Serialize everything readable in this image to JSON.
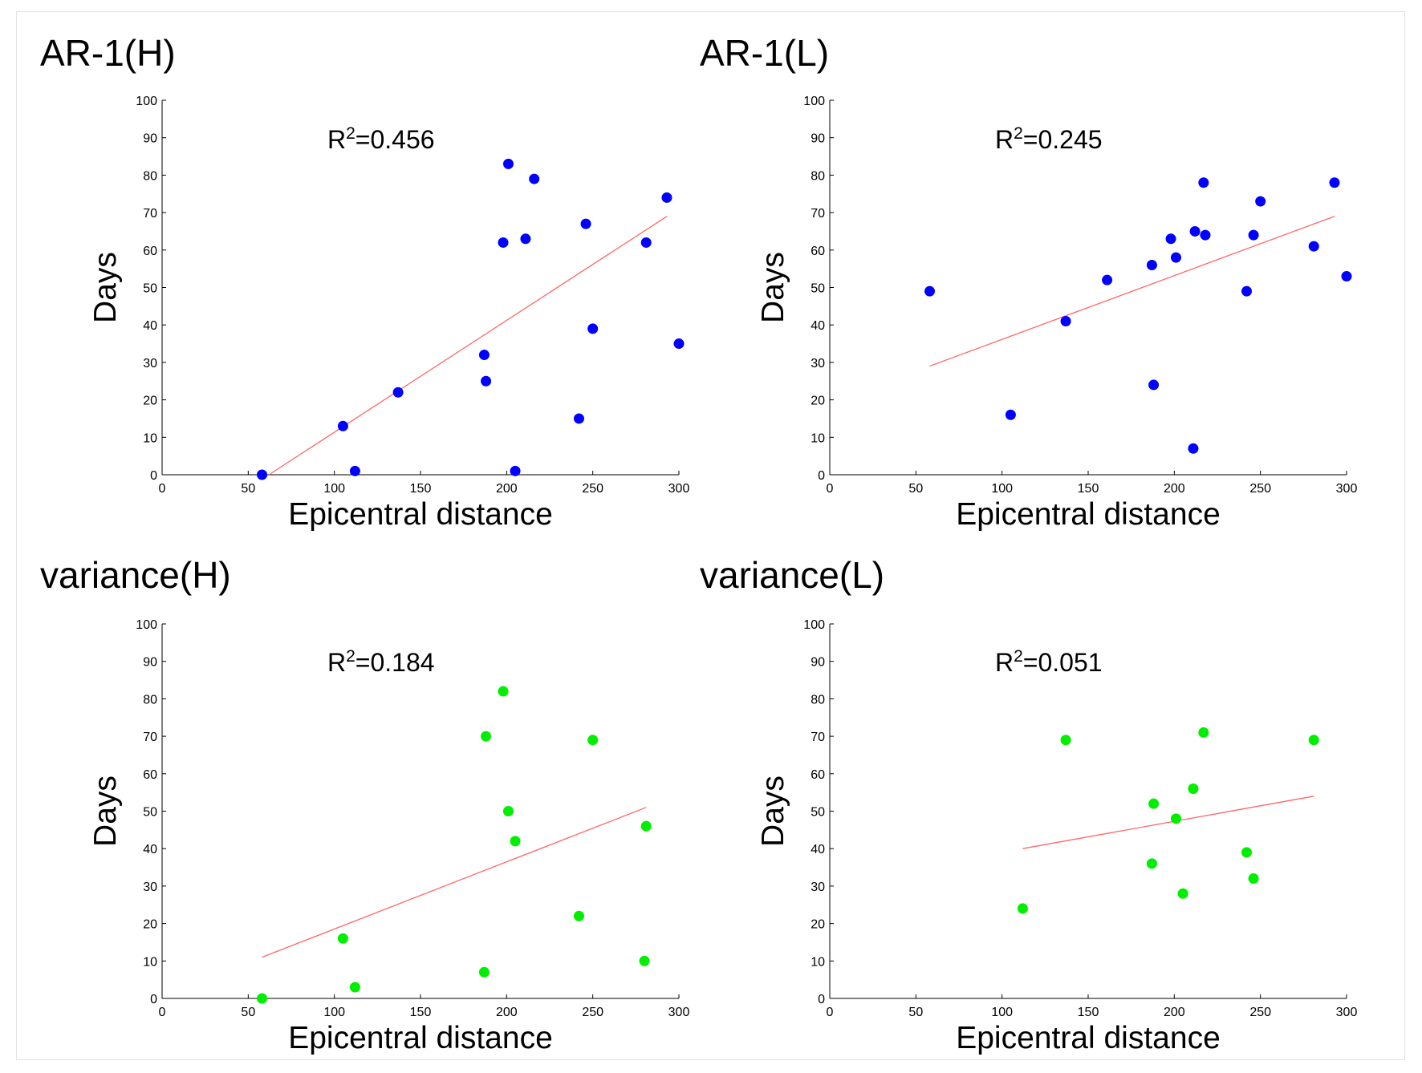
{
  "chart_data": [
    {
      "type": "scatter",
      "title": "AR-1(H)",
      "xlabel": "Epicentral distance",
      "ylabel": "Days",
      "xlim": [
        0,
        300
      ],
      "ylim": [
        0,
        100
      ],
      "xticks": [
        0,
        50,
        100,
        150,
        200,
        250,
        300
      ],
      "yticks": [
        0,
        10,
        20,
        30,
        40,
        50,
        60,
        70,
        80,
        90,
        100
      ],
      "annotation": {
        "base": "R",
        "sup": "2",
        "value": "=0.456"
      },
      "marker_color": "#0000ff",
      "fit_color": "#ff6666",
      "points": [
        [
          58,
          0
        ],
        [
          105,
          13
        ],
        [
          112,
          1
        ],
        [
          137,
          22
        ],
        [
          187,
          32
        ],
        [
          188,
          25
        ],
        [
          198,
          62
        ],
        [
          201,
          83
        ],
        [
          205,
          1
        ],
        [
          211,
          63
        ],
        [
          216,
          79
        ],
        [
          242,
          15
        ],
        [
          246,
          67
        ],
        [
          250,
          39
        ],
        [
          281,
          62
        ],
        [
          293,
          74
        ],
        [
          300,
          35
        ]
      ],
      "fit_line": [
        [
          62,
          0
        ],
        [
          293,
          69
        ]
      ]
    },
    {
      "type": "scatter",
      "title": "AR-1(L)",
      "xlabel": "Epicentral distance",
      "ylabel": "Days",
      "xlim": [
        0,
        300
      ],
      "ylim": [
        0,
        100
      ],
      "xticks": [
        0,
        50,
        100,
        150,
        200,
        250,
        300
      ],
      "yticks": [
        0,
        10,
        20,
        30,
        40,
        50,
        60,
        70,
        80,
        90,
        100
      ],
      "annotation": {
        "base": "R",
        "sup": "2",
        "value": "=0.245"
      },
      "marker_color": "#0000ff",
      "fit_color": "#ff6666",
      "points": [
        [
          58,
          49
        ],
        [
          105,
          16
        ],
        [
          137,
          41
        ],
        [
          161,
          52
        ],
        [
          187,
          56
        ],
        [
          188,
          24
        ],
        [
          198,
          63
        ],
        [
          201,
          58
        ],
        [
          211,
          7
        ],
        [
          212,
          65
        ],
        [
          217,
          78
        ],
        [
          218,
          64
        ],
        [
          242,
          49
        ],
        [
          246,
          64
        ],
        [
          250,
          73
        ],
        [
          281,
          61
        ],
        [
          293,
          78
        ],
        [
          300,
          53
        ]
      ],
      "fit_line": [
        [
          58,
          29
        ],
        [
          293,
          69
        ]
      ]
    },
    {
      "type": "scatter",
      "title": "variance(H)",
      "xlabel": "Epicentral distance",
      "ylabel": "Days",
      "xlim": [
        0,
        300
      ],
      "ylim": [
        0,
        100
      ],
      "xticks": [
        0,
        50,
        100,
        150,
        200,
        250,
        300
      ],
      "yticks": [
        0,
        10,
        20,
        30,
        40,
        50,
        60,
        70,
        80,
        90,
        100
      ],
      "annotation": {
        "base": "R",
        "sup": "2",
        "value": "=0.184"
      },
      "marker_color": "#00ee00",
      "fit_color": "#ff6666",
      "points": [
        [
          58,
          0
        ],
        [
          105,
          16
        ],
        [
          112,
          3
        ],
        [
          187,
          7
        ],
        [
          188,
          70
        ],
        [
          198,
          82
        ],
        [
          201,
          50
        ],
        [
          205,
          42
        ],
        [
          242,
          22
        ],
        [
          250,
          69
        ],
        [
          280,
          10
        ],
        [
          281,
          46
        ]
      ],
      "fit_line": [
        [
          58,
          11
        ],
        [
          281,
          51
        ]
      ]
    },
    {
      "type": "scatter",
      "title": "variance(L)",
      "xlabel": "Epicentral distance",
      "ylabel": "Days",
      "xlim": [
        0,
        300
      ],
      "ylim": [
        0,
        100
      ],
      "xticks": [
        0,
        50,
        100,
        150,
        200,
        250,
        300
      ],
      "yticks": [
        0,
        10,
        20,
        30,
        40,
        50,
        60,
        70,
        80,
        90,
        100
      ],
      "annotation": {
        "base": "R",
        "sup": "2",
        "value": "=0.051"
      },
      "marker_color": "#00ee00",
      "fit_color": "#ff6666",
      "points": [
        [
          112,
          24
        ],
        [
          137,
          69
        ],
        [
          187,
          36
        ],
        [
          188,
          52
        ],
        [
          201,
          48
        ],
        [
          205,
          28
        ],
        [
          211,
          56
        ],
        [
          217,
          71
        ],
        [
          242,
          39
        ],
        [
          246,
          32
        ],
        [
          281,
          69
        ]
      ],
      "fit_line": [
        [
          112,
          40
        ],
        [
          281,
          54
        ]
      ]
    }
  ]
}
